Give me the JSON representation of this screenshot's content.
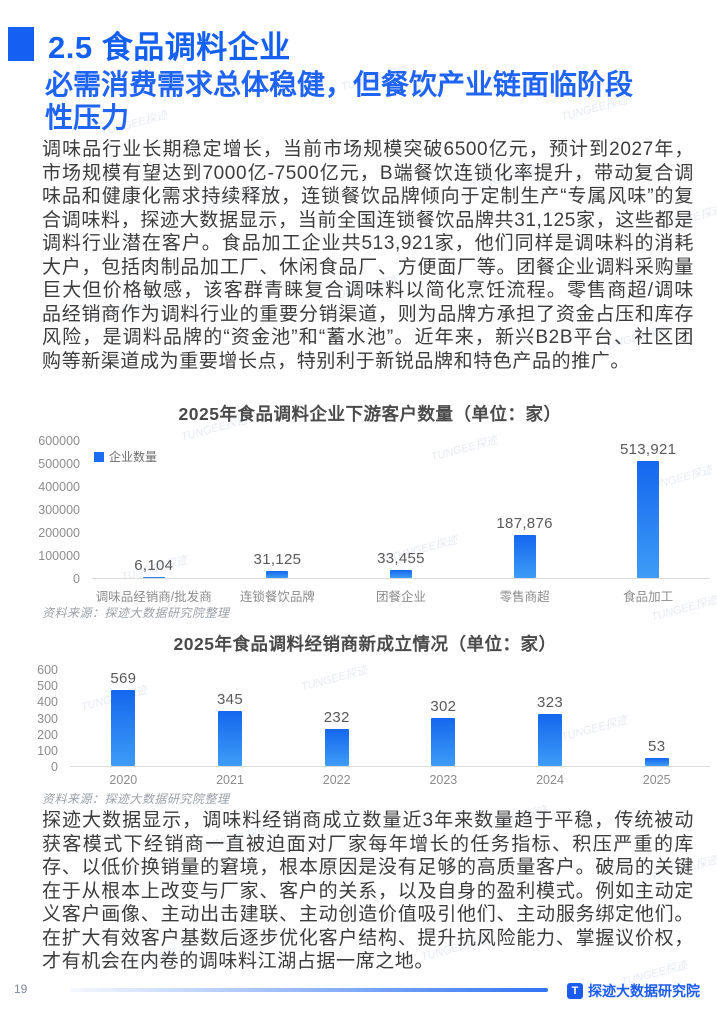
{
  "page": {
    "section_title": "2.5 食品调料企业",
    "subtitle": "必需消费需求总体稳健，但餐饮产业链面临阶段性压力",
    "intro_paragraph": "调味品行业长期稳定增长，当前市场规模突破6500亿元，预计到2027年，市场规模有望达到7000亿-7500亿元，B端餐饮连锁化率提升，带动复合调味品和健康化需求持续释放，连锁餐饮品牌倾向于定制生产“专属风味”的复合调味料，探迹大数据显示，当前全国连锁餐饮品牌共31,125家，这些都是调料行业潜在客户。食品加工企业共513,921家，他们同样是调味料的消耗大户，包括肉制品加工厂、休闲食品厂、方便面厂等。团餐企业调料采购量巨大但价格敏感，该客群青睐复合调味料以简化烹饪流程。零售商超/调味品经销商作为调料行业的重要分销渠道，则为品牌方承担了资金占压和库存风险，是调料品牌的“资金池”和“蓄水池”。近年来，新兴B2B平台、社区团购等新渠道成为重要增长点，特别利于新锐品牌和特色产品的推广。",
    "analysis_paragraph": "探迹大数据显示，调味料经销商成立数量近3年来数量趋于平稳，传统被动获客模式下经销商一直被迫面对厂家每年增长的任务指标、积压严重的库存、以低价换销量的窘境，根本原因是没有足够的高质量客户。破局的关键在于从根本上改变与厂家、客户的关系，以及自身的盈利模式。例如主动定义客户画像、主动出击建联、主动创造价值吸引他们、主动服务绑定他们。在扩大有效客户基数后逐步优化客户结构、提升抗风险能力、掌握议价权，才有机会在内卷的调味料江湖占据一席之地。",
    "source_note": "资料来源：探迹大数据研究院整理"
  },
  "chart_data": [
    {
      "type": "bar",
      "title": "2025年食品调料企业下游客户数量（单位：家）",
      "legend": [
        "企业数量"
      ],
      "legend_position": "top-left",
      "categories": [
        "调味品经销商/批发商",
        "连锁餐饮品牌",
        "团餐企业",
        "零售商超",
        "食品加工"
      ],
      "values": [
        6104,
        31125,
        33455,
        187876,
        513921
      ],
      "value_labels": [
        "6,104",
        "31,125",
        "33,455",
        "187,876",
        "513,921"
      ],
      "xlabel": "",
      "ylabel": "",
      "ylim": [
        0,
        600000
      ],
      "yticks": [
        600000,
        500000,
        400000,
        300000,
        200000,
        100000,
        0
      ],
      "grid": false
    },
    {
      "type": "bar",
      "title": "2025年食品调料经销商新成立情况（单位：家）",
      "legend": [],
      "categories": [
        "2020",
        "2021",
        "2022",
        "2023",
        "2024",
        "2025"
      ],
      "values": [
        569,
        345,
        232,
        302,
        323,
        53
      ],
      "value_labels": [
        "569",
        "345",
        "232",
        "302",
        "323",
        "53"
      ],
      "xlabel": "",
      "ylabel": "",
      "ylim": [
        0,
        600
      ],
      "yticks": [
        600,
        500,
        400,
        300,
        200,
        100,
        0
      ],
      "grid": false
    }
  ],
  "footer": {
    "page_number": "19",
    "brand_name": "探迹大数据研究院",
    "logo_letter": "T"
  },
  "watermark": {
    "text": "TUNGEE探迹"
  },
  "colors": {
    "accent_blue": "#1460F2",
    "subtitle_blue": "#2064F5",
    "bar_gradient_top": "#1467EE",
    "bar_gradient_bottom": "#3E9CF6",
    "footer_blue": "#1B5BF0",
    "baseline_gray": "#dcdcdc"
  }
}
